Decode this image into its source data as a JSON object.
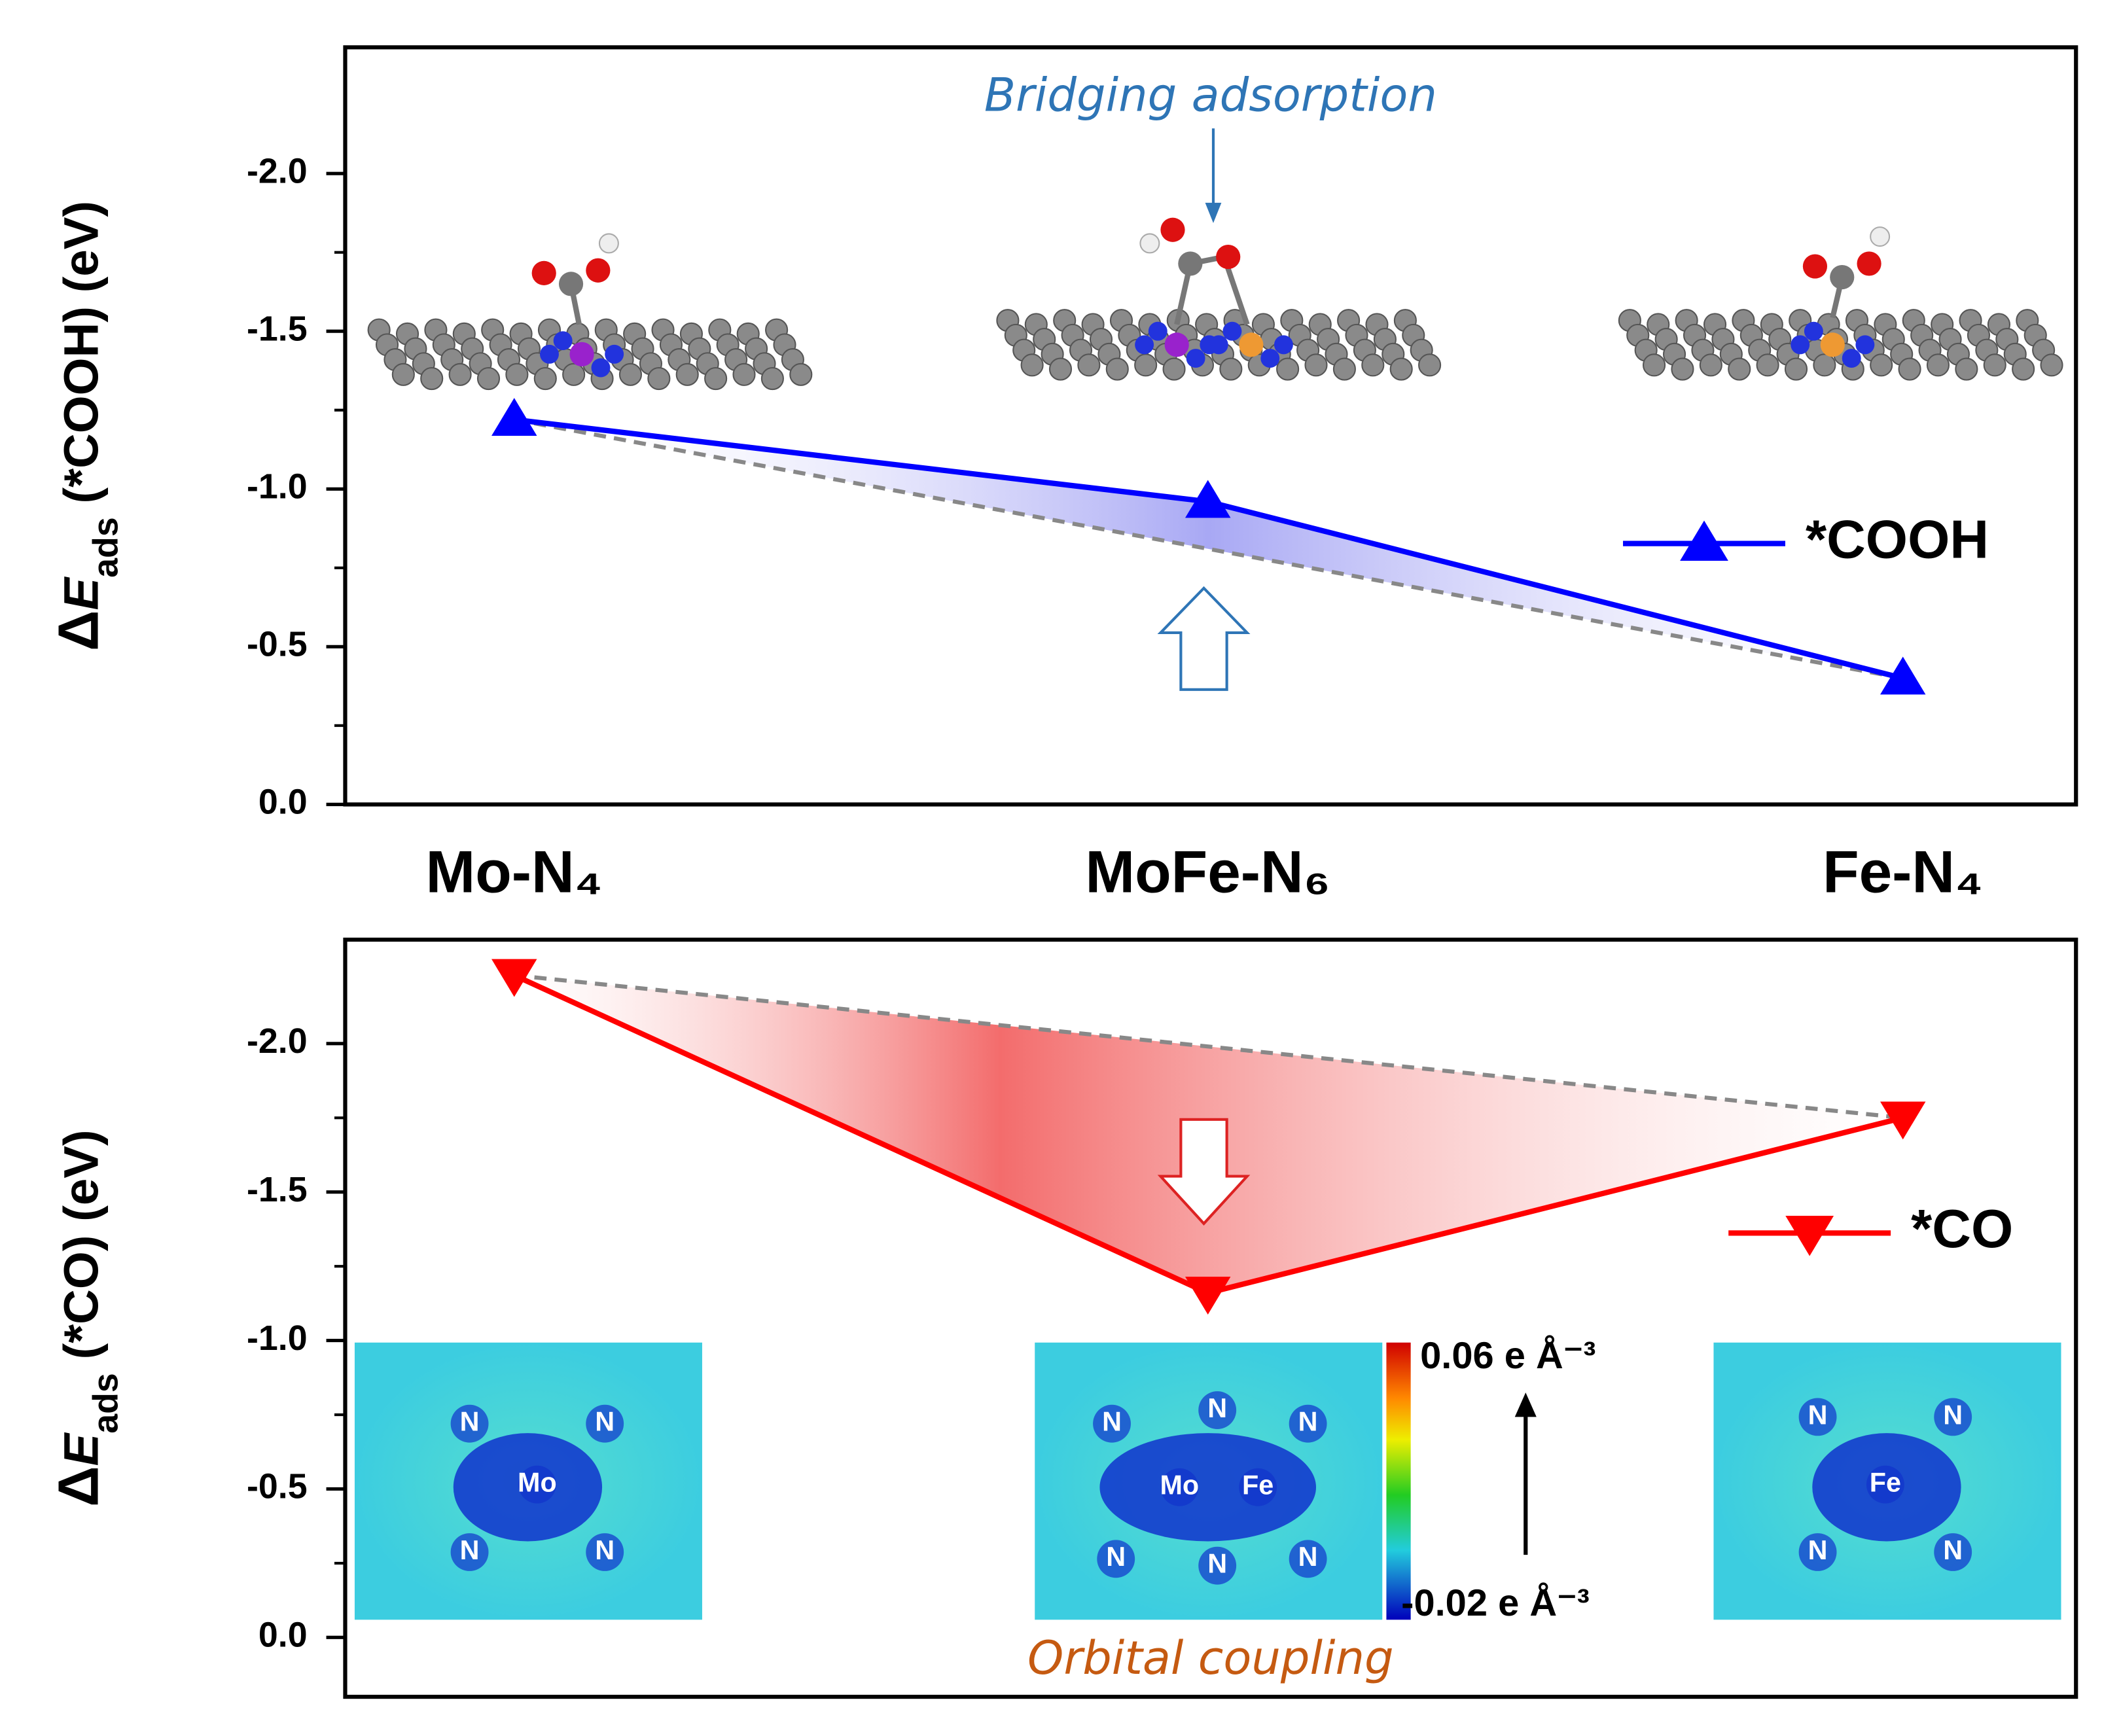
{
  "chart_data": [
    {
      "type": "line",
      "categories": [
        "Mo-N₄",
        "MoFe-N₆",
        "Fe-N₄"
      ],
      "y_label": [
        "Δ",
        "E",
        "ads",
        " (*COOH) (eV)"
      ],
      "series": [
        {
          "name": "*COOH",
          "color": "#0000ff",
          "marker": "triangle-up",
          "values": [
            -1.22,
            -0.96,
            -0.4
          ]
        }
      ],
      "ylim": [
        0,
        -2.4
      ],
      "yticks": [
        {
          "value": 0,
          "label": "0.0"
        },
        {
          "value": -0.5,
          "label": "-0.5"
        },
        {
          "value": -1,
          "label": "-1.0"
        },
        {
          "value": -1.5,
          "label": "-1.5"
        },
        {
          "value": -2,
          "label": "-2.0"
        }
      ],
      "annotation": "Bridging adsorption"
    },
    {
      "type": "line",
      "y_label": [
        "Δ",
        "E",
        "ads",
        " (*CO) (eV)"
      ],
      "series": [
        {
          "name": "*CO",
          "color": "#ff0000",
          "marker": "triangle-down",
          "values": [
            -2.23,
            -1.16,
            -1.75
          ]
        }
      ],
      "ylim": [
        0.2,
        -2.35
      ],
      "yticks": [
        {
          "value": 0,
          "label": "0.0"
        },
        {
          "value": -0.5,
          "label": "-0.5"
        },
        {
          "value": -1,
          "label": "-1.0"
        },
        {
          "value": -1.5,
          "label": "-1.5"
        },
        {
          "value": -2,
          "label": "-2.0"
        }
      ],
      "annotation": "Orbital coupling",
      "colorbar": [
        "0.06 e Å⁻³",
        "-0.02 e Å⁻³"
      ],
      "insets": [
        [
          "N",
          "N",
          "Mo",
          "N",
          "N"
        ],
        [
          "N",
          "N",
          "N",
          "Mo",
          "Fe",
          "N",
          "N",
          "N"
        ],
        [
          "N",
          "N",
          "Fe",
          "N",
          "N"
        ]
      ]
    }
  ]
}
